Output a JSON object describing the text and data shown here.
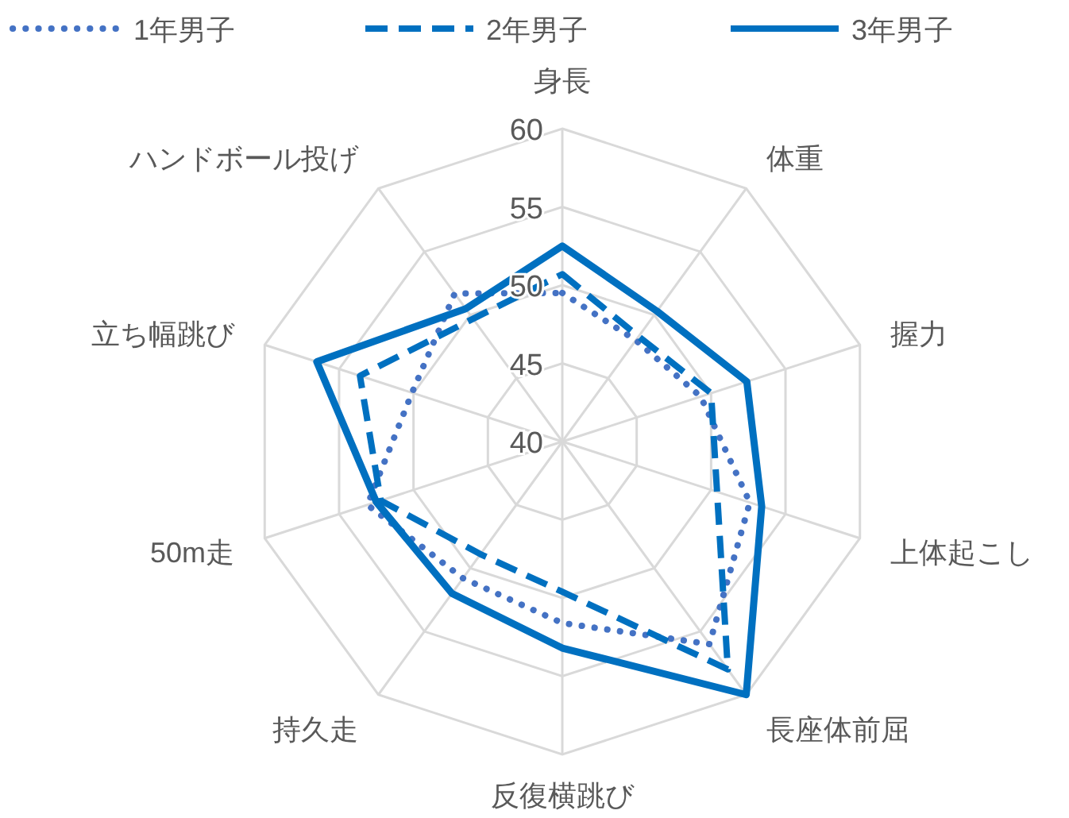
{
  "chart_data": {
    "type": "radar",
    "categories": [
      "身長",
      "体重",
      "握力",
      "上体起こし",
      "長座体前屈",
      "反復横跳び",
      "持久走",
      "50m走",
      "立ち幅跳び",
      "ハンドボール投げ"
    ],
    "series": [
      {
        "name": "1年男子",
        "color": "#4472c4",
        "line_style": "dotted",
        "values": [
          49.5,
          48,
          49.3,
          52.6,
          56,
          51.6,
          50.8,
          53.1,
          50.1,
          51.7
        ]
      },
      {
        "name": "2年男子",
        "color": "#0070c0",
        "line_style": "dashed",
        "values": [
          50.7,
          48.3,
          50,
          50.4,
          58,
          49.6,
          48.9,
          52.2,
          53.6,
          49.7
        ]
      },
      {
        "name": "3年男子",
        "color": "#0070c0",
        "line_style": "solid",
        "values": [
          52.5,
          50.3,
          52.4,
          53.4,
          60,
          53.2,
          52,
          52.5,
          56.5,
          50.5
        ]
      }
    ],
    "ylim": [
      40,
      60
    ],
    "yticks": [
      40,
      45,
      50,
      55,
      60
    ],
    "grid": true,
    "legend": "top"
  }
}
